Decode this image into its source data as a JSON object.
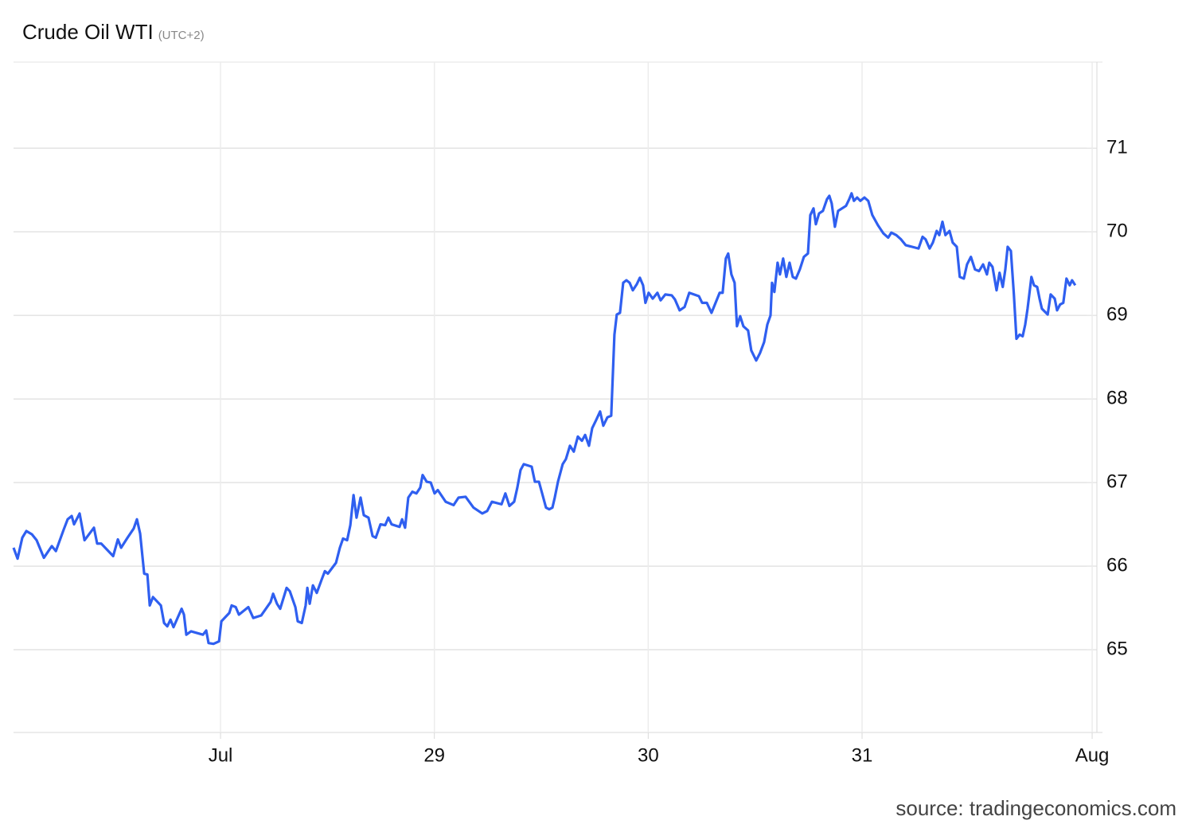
{
  "chart_data": {
    "type": "line",
    "title": "Crude Oil WTI",
    "subtitle": "(UTC+2)",
    "source": "source: tradingeconomics.com",
    "xlim": [
      -0.968,
      4.087
    ],
    "ylim": [
      64.01,
      72.03
    ],
    "xticks": [
      {
        "value": 0,
        "label": "Jul"
      },
      {
        "value": 1,
        "label": "29"
      },
      {
        "value": 2,
        "label": "30"
      },
      {
        "value": 3,
        "label": "31"
      },
      {
        "value": 4.076,
        "label": "Aug"
      }
    ],
    "yticks": [
      65,
      66,
      67,
      68,
      69,
      70,
      71
    ],
    "grid": true,
    "y_axis_side": "right",
    "x": [
      -0.968,
      -0.949,
      -0.927,
      -0.908,
      -0.882,
      -0.86,
      -0.826,
      -0.789,
      -0.77,
      -0.733,
      -0.715,
      -0.696,
      -0.685,
      -0.659,
      -0.636,
      -0.592,
      -0.577,
      -0.558,
      -0.502,
      -0.48,
      -0.465,
      -0.435,
      -0.406,
      -0.391,
      -0.376,
      -0.357,
      -0.342,
      -0.331,
      -0.316,
      -0.279,
      -0.264,
      -0.249,
      -0.234,
      -0.22,
      -0.182,
      -0.171,
      -0.16,
      -0.138,
      -0.082,
      -0.067,
      -0.056,
      -0.033,
      -0.007,
      0.004,
      0.041,
      0.052,
      0.071,
      0.086,
      0.13,
      0.153,
      0.19,
      0.234,
      0.246,
      0.264,
      0.279,
      0.309,
      0.324,
      0.35,
      0.361,
      0.38,
      0.398,
      0.406,
      0.417,
      0.432,
      0.45,
      0.473,
      0.488,
      0.502,
      0.54,
      0.558,
      0.573,
      0.592,
      0.607,
      0.622,
      0.636,
      0.655,
      0.67,
      0.692,
      0.711,
      0.726,
      0.748,
      0.77,
      0.785,
      0.8,
      0.837,
      0.849,
      0.863,
      0.878,
      0.897,
      0.916,
      0.934,
      0.945,
      0.964,
      0.983,
      1.001,
      1.016,
      1.053,
      1.09,
      1.113,
      1.146,
      1.183,
      1.224,
      1.247,
      1.269,
      1.314,
      1.332,
      1.351,
      1.373,
      1.388,
      1.403,
      1.418,
      1.455,
      1.47,
      1.489,
      1.504,
      1.522,
      1.537,
      1.552,
      1.563,
      1.578,
      1.6,
      1.615,
      1.634,
      1.652,
      1.671,
      1.69,
      1.705,
      1.723,
      1.738,
      1.757,
      1.775,
      1.79,
      1.809,
      1.827,
      1.842,
      1.853,
      1.868,
      1.883,
      1.898,
      1.913,
      1.928,
      1.946,
      1.961,
      1.976,
      1.987,
      2.002,
      2.021,
      2.043,
      2.058,
      2.08,
      2.11,
      2.125,
      2.147,
      2.17,
      2.192,
      2.237,
      2.252,
      2.274,
      2.296,
      2.334,
      2.348,
      2.363,
      2.374,
      2.389,
      2.404,
      2.415,
      2.43,
      2.445,
      2.467,
      2.482,
      2.505,
      2.523,
      2.542,
      2.557,
      2.572,
      2.579,
      2.59,
      2.605,
      2.616,
      2.631,
      2.646,
      2.661,
      2.676,
      2.691,
      2.709,
      2.728,
      2.747,
      2.758,
      2.773,
      2.784,
      2.799,
      2.817,
      2.836,
      2.847,
      2.858,
      2.873,
      2.888,
      2.925,
      2.94,
      2.951,
      2.962,
      2.977,
      2.992,
      3.011,
      3.029,
      3.048,
      3.074,
      3.1,
      3.122,
      3.137,
      3.16,
      3.182,
      3.204,
      3.264,
      3.283,
      3.297,
      3.316,
      3.331,
      3.349,
      3.361,
      3.376,
      3.39,
      3.409,
      3.424,
      3.443,
      3.457,
      3.476,
      3.491,
      3.509,
      3.528,
      3.547,
      3.566,
      3.584,
      3.595,
      3.61,
      3.629,
      3.643,
      3.658,
      3.67,
      3.681,
      3.696,
      3.71,
      3.722,
      3.737,
      3.751,
      3.763,
      3.774,
      3.792,
      3.804,
      3.819,
      3.83,
      3.841,
      3.868,
      3.882,
      3.901,
      3.912,
      3.926,
      3.941,
      3.956,
      3.971,
      3.982,
      3.997
    ],
    "series": [
      {
        "name": "Crude Oil WTI",
        "color": "#2f5ff0",
        "values": [
          66.22,
          66.09,
          66.34,
          66.42,
          66.38,
          66.31,
          66.1,
          66.24,
          66.18,
          66.44,
          66.56,
          66.6,
          66.5,
          66.63,
          66.31,
          66.46,
          66.27,
          66.27,
          66.12,
          66.32,
          66.22,
          66.34,
          66.45,
          66.56,
          66.39,
          65.91,
          65.9,
          65.53,
          65.63,
          65.53,
          65.32,
          65.28,
          65.36,
          65.27,
          65.49,
          65.42,
          65.18,
          65.22,
          65.18,
          65.23,
          65.08,
          65.07,
          65.1,
          65.34,
          65.44,
          65.53,
          65.51,
          65.42,
          65.51,
          65.38,
          65.41,
          65.57,
          65.67,
          65.55,
          65.49,
          65.74,
          65.7,
          65.51,
          65.34,
          65.32,
          65.53,
          65.74,
          65.55,
          65.77,
          65.68,
          65.84,
          65.94,
          65.91,
          66.04,
          66.22,
          66.33,
          66.31,
          66.49,
          66.85,
          66.58,
          66.82,
          66.61,
          66.58,
          66.36,
          66.34,
          66.5,
          66.49,
          66.58,
          66.5,
          66.47,
          66.56,
          66.46,
          66.82,
          66.89,
          66.87,
          66.94,
          67.09,
          67.01,
          67.0,
          66.87,
          66.91,
          66.77,
          66.73,
          66.82,
          66.83,
          66.7,
          66.63,
          66.66,
          66.77,
          66.74,
          66.87,
          66.72,
          66.77,
          66.94,
          67.15,
          67.22,
          67.19,
          67.01,
          67.01,
          66.87,
          66.7,
          66.68,
          66.7,
          66.82,
          67.01,
          67.22,
          67.28,
          67.44,
          67.37,
          67.55,
          67.5,
          67.57,
          67.44,
          67.65,
          67.75,
          67.85,
          67.68,
          67.78,
          67.8,
          68.77,
          69.01,
          69.03,
          69.39,
          69.42,
          69.39,
          69.3,
          69.37,
          69.45,
          69.36,
          69.15,
          69.27,
          69.2,
          69.27,
          69.18,
          69.25,
          69.24,
          69.19,
          69.06,
          69.1,
          69.27,
          69.23,
          69.15,
          69.15,
          69.03,
          69.27,
          69.27,
          69.68,
          69.74,
          69.49,
          69.39,
          68.87,
          68.99,
          68.87,
          68.82,
          68.58,
          68.46,
          68.55,
          68.68,
          68.89,
          69.0,
          69.39,
          69.28,
          69.63,
          69.49,
          69.68,
          69.46,
          69.63,
          69.46,
          69.44,
          69.55,
          69.7,
          69.74,
          70.2,
          70.28,
          70.09,
          70.22,
          70.25,
          70.39,
          70.43,
          70.34,
          70.06,
          70.25,
          70.31,
          70.39,
          70.46,
          70.37,
          70.41,
          70.37,
          70.41,
          70.37,
          70.2,
          70.08,
          69.98,
          69.93,
          69.99,
          69.96,
          69.91,
          69.84,
          69.8,
          69.94,
          69.91,
          69.8,
          69.87,
          70.01,
          69.96,
          70.12,
          69.96,
          70.01,
          69.87,
          69.82,
          69.46,
          69.44,
          69.61,
          69.7,
          69.55,
          69.53,
          69.61,
          69.49,
          69.63,
          69.58,
          69.3,
          69.51,
          69.34,
          69.55,
          69.82,
          69.77,
          69.25,
          68.72,
          68.77,
          68.75,
          68.89,
          69.08,
          69.46,
          69.36,
          69.34,
          69.2,
          69.08,
          69.01,
          69.25,
          69.2,
          69.06,
          69.13,
          69.15,
          69.44,
          69.36,
          69.42,
          69.36
        ]
      }
    ]
  }
}
